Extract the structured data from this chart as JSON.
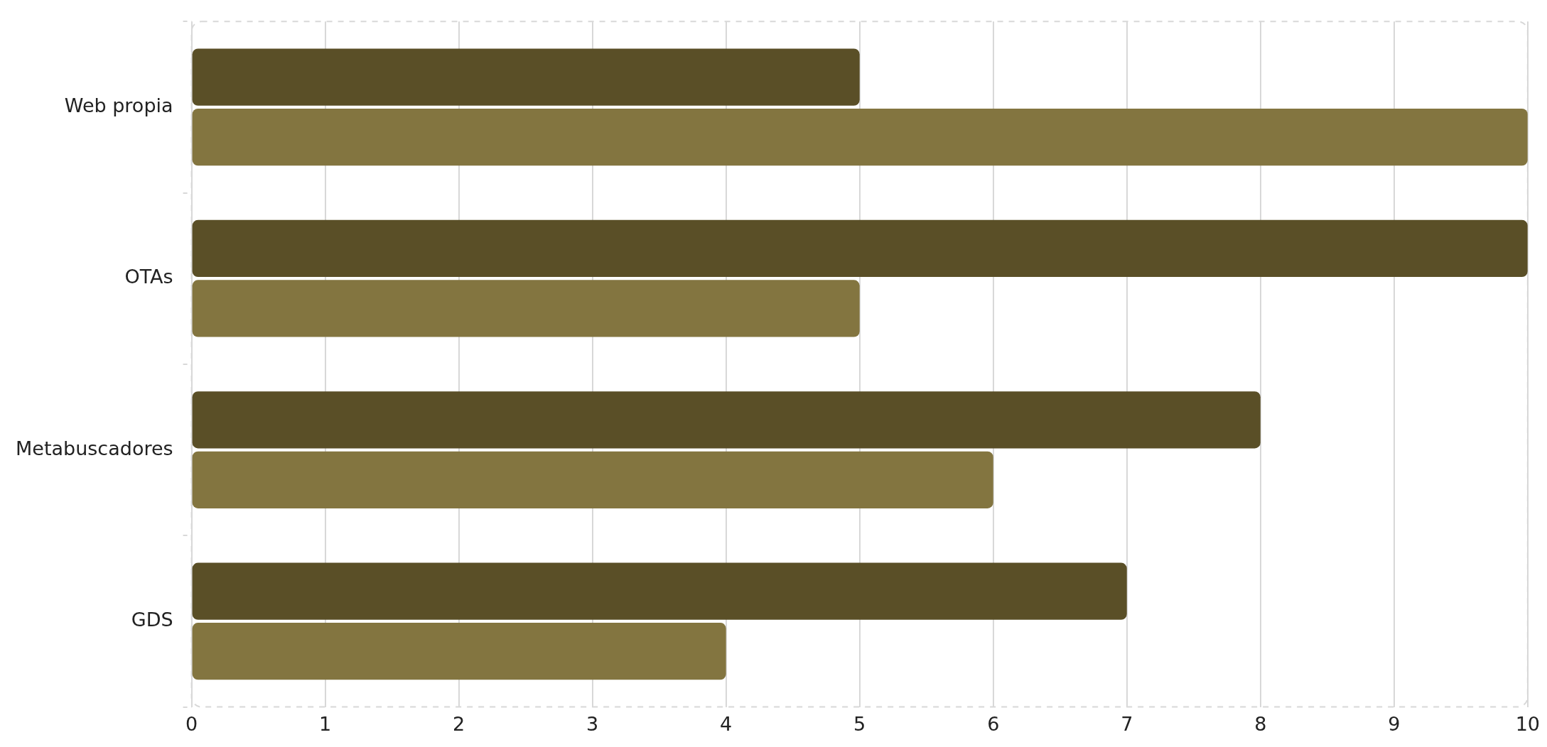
{
  "chart_data": {
    "type": "bar",
    "orientation": "horizontal",
    "categories": [
      "Web propia",
      "OTAs",
      "Metabuscadores",
      "GDS"
    ],
    "series": [
      {
        "color": "#5a4f27",
        "values": [
          5,
          10,
          8,
          7
        ]
      },
      {
        "color": "#837540",
        "values": [
          10,
          5,
          6,
          4
        ]
      }
    ],
    "xlim": [
      0,
      10
    ],
    "xticks": [
      0,
      1,
      2,
      3,
      4,
      5,
      6,
      7,
      8,
      9,
      10
    ],
    "grid": "x",
    "legend": false
  }
}
